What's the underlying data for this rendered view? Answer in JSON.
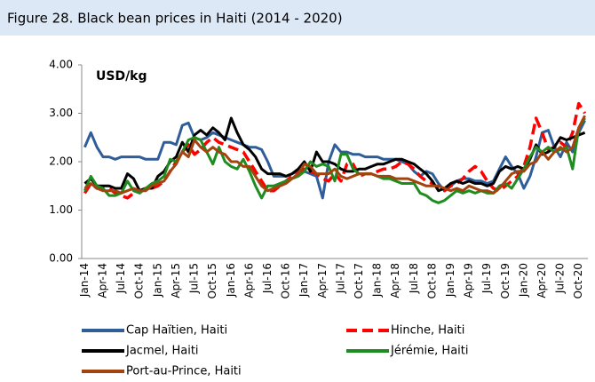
{
  "chart_data": {
    "type": "line",
    "title": "Figure 28. Black bean prices in Haiti (2014 - 2020)",
    "y_label": "USD/kg",
    "categories": [
      "Jan-14",
      null,
      null,
      "Apr-14",
      null,
      null,
      "Jul-14",
      null,
      null,
      "Oct-14",
      null,
      null,
      "Jan-15",
      null,
      null,
      "Apr-15",
      null,
      null,
      "Jul-15",
      null,
      null,
      "Oct-15",
      null,
      null,
      "Jan-16",
      null,
      null,
      "Apr-16",
      null,
      null,
      "Jul-16",
      null,
      null,
      "Oct-16",
      null,
      null,
      "Jan-17",
      null,
      null,
      "Apr-17",
      null,
      null,
      "Jul-17",
      null,
      null,
      "Oct-17",
      null,
      null,
      "Jan-18",
      null,
      null,
      "Apr-18",
      null,
      null,
      "Jul-18",
      null,
      null,
      "Oct-18",
      null,
      null,
      "Jan-19",
      null,
      null,
      "Apr-19",
      null,
      null,
      "Jul-19",
      null,
      null,
      "Oct-19",
      null,
      null,
      "Jan-20",
      null,
      null,
      "Apr-20",
      null,
      null,
      "Jul-20",
      null,
      null,
      "Oct-20",
      null
    ],
    "series": [
      {
        "name": "Cap Haïtien, Haiti",
        "color": "#2f5d9a",
        "line_style": "solid",
        "values": [
          2.3,
          2.6,
          2.3,
          2.1,
          2.1,
          2.05,
          2.1,
          2.1,
          2.1,
          2.1,
          2.05,
          2.05,
          2.05,
          2.4,
          2.4,
          2.35,
          2.75,
          2.8,
          2.5,
          2.45,
          2.5,
          2.6,
          2.55,
          2.5,
          2.45,
          2.4,
          2.35,
          2.3,
          2.3,
          2.25,
          2.0,
          1.7,
          1.7,
          1.7,
          1.75,
          1.8,
          1.8,
          1.75,
          1.7,
          1.25,
          2.0,
          2.35,
          2.2,
          2.2,
          2.15,
          2.15,
          2.1,
          2.1,
          2.1,
          2.05,
          2.05,
          2.05,
          2.0,
          1.95,
          1.8,
          1.7,
          1.8,
          1.75,
          1.55,
          1.4,
          1.5,
          1.6,
          1.65,
          1.65,
          1.6,
          1.6,
          1.55,
          1.6,
          1.85,
          2.1,
          1.9,
          1.75,
          1.45,
          1.7,
          2.1,
          2.6,
          2.65,
          2.3,
          2.1,
          2.4,
          2.2,
          2.6,
          2.85
        ]
      },
      {
        "name": "Hinche, Haiti",
        "color": "#ff0000",
        "line_style": "dashed",
        "values": [
          1.35,
          1.55,
          1.45,
          1.45,
          1.45,
          1.35,
          1.3,
          1.25,
          1.35,
          1.4,
          1.45,
          1.45,
          1.5,
          1.6,
          1.8,
          2.0,
          2.2,
          2.35,
          2.15,
          2.25,
          2.4,
          2.5,
          2.4,
          2.35,
          2.3,
          2.25,
          2.2,
          2.0,
          1.8,
          1.6,
          1.4,
          1.4,
          1.5,
          1.6,
          1.7,
          1.8,
          1.85,
          1.8,
          1.75,
          1.65,
          1.6,
          1.75,
          1.6,
          1.95,
          1.95,
          1.7,
          1.75,
          1.75,
          1.8,
          1.85,
          1.85,
          1.9,
          2.0,
          1.95,
          1.85,
          1.7,
          1.6,
          1.55,
          1.45,
          1.4,
          1.5,
          1.55,
          1.65,
          1.8,
          1.9,
          1.8,
          1.6,
          1.45,
          1.4,
          1.5,
          1.6,
          1.7,
          1.9,
          2.3,
          2.9,
          2.6,
          2.25,
          2.3,
          2.4,
          2.3,
          2.6,
          3.2,
          3.0
        ]
      },
      {
        "name": "Jacmel, Haiti",
        "color": "#000000",
        "line_style": "solid",
        "values": [
          1.55,
          1.65,
          1.5,
          1.5,
          1.5,
          1.45,
          1.45,
          1.75,
          1.65,
          1.4,
          1.45,
          1.45,
          1.7,
          1.8,
          2.0,
          2.1,
          2.4,
          2.2,
          2.55,
          2.65,
          2.55,
          2.7,
          2.6,
          2.45,
          2.9,
          2.6,
          2.35,
          2.25,
          2.1,
          1.85,
          1.75,
          1.75,
          1.75,
          1.7,
          1.75,
          1.85,
          2.0,
          1.8,
          2.2,
          2.0,
          2.0,
          1.95,
          1.85,
          1.8,
          1.8,
          1.85,
          1.85,
          1.9,
          1.95,
          1.95,
          2.0,
          2.05,
          2.05,
          2.0,
          1.95,
          1.85,
          1.75,
          1.6,
          1.4,
          1.45,
          1.55,
          1.6,
          1.55,
          1.6,
          1.55,
          1.55,
          1.5,
          1.55,
          1.8,
          1.9,
          1.85,
          1.9,
          1.85,
          2.05,
          2.35,
          2.15,
          2.2,
          2.3,
          2.5,
          2.45,
          2.5,
          2.55,
          2.6
        ]
      },
      {
        "name": "Jérémie, Haiti",
        "color": "#1e8c1e",
        "line_style": "solid",
        "values": [
          1.4,
          1.7,
          1.5,
          1.45,
          1.3,
          1.3,
          1.35,
          1.6,
          1.4,
          1.35,
          1.45,
          1.55,
          1.6,
          1.7,
          2.05,
          2.0,
          2.2,
          2.45,
          2.5,
          2.45,
          2.2,
          1.95,
          2.3,
          2.0,
          1.9,
          1.85,
          2.05,
          1.8,
          1.5,
          1.25,
          1.5,
          1.5,
          1.55,
          1.6,
          1.65,
          1.7,
          1.8,
          2.0,
          1.9,
          1.95,
          1.9,
          1.6,
          2.15,
          2.15,
          1.85,
          1.75,
          1.75,
          1.75,
          1.7,
          1.65,
          1.65,
          1.6,
          1.55,
          1.55,
          1.55,
          1.35,
          1.3,
          1.2,
          1.15,
          1.2,
          1.3,
          1.4,
          1.35,
          1.4,
          1.35,
          1.4,
          1.35,
          1.35,
          1.5,
          1.55,
          1.45,
          1.65,
          1.85,
          2.1,
          2.3,
          2.2,
          2.3,
          2.2,
          2.25,
          2.3,
          1.85,
          2.7,
          2.9
        ]
      },
      {
        "name": "Port-au-Prince, Haiti",
        "color": "#a3440f",
        "line_style": "solid",
        "values": [
          1.45,
          1.55,
          1.45,
          1.4,
          1.4,
          1.4,
          1.35,
          1.4,
          1.45,
          1.4,
          1.4,
          1.5,
          1.55,
          1.6,
          1.8,
          1.95,
          2.2,
          2.1,
          2.45,
          2.3,
          2.2,
          2.3,
          2.2,
          2.15,
          2.0,
          2.0,
          1.9,
          1.9,
          1.7,
          1.5,
          1.4,
          1.45,
          1.5,
          1.55,
          1.65,
          1.75,
          1.95,
          1.9,
          1.75,
          1.75,
          1.75,
          1.85,
          1.7,
          1.65,
          1.7,
          1.75,
          1.75,
          1.75,
          1.7,
          1.7,
          1.7,
          1.65,
          1.65,
          1.65,
          1.6,
          1.55,
          1.5,
          1.5,
          1.5,
          1.45,
          1.4,
          1.45,
          1.4,
          1.5,
          1.45,
          1.4,
          1.4,
          1.35,
          1.45,
          1.6,
          1.75,
          1.8,
          1.8,
          1.95,
          2.0,
          2.2,
          2.05,
          2.2,
          2.3,
          2.2,
          2.3,
          2.7,
          2.95
        ]
      }
    ],
    "ylim": [
      0,
      4
    ],
    "yticks": [
      {
        "value": 0,
        "label": "0.00"
      },
      {
        "value": 1,
        "label": "1.00"
      },
      {
        "value": 2,
        "label": "2.00"
      },
      {
        "value": 3,
        "label": "3.00"
      },
      {
        "value": 4,
        "label": "4.00"
      }
    ],
    "grid": false
  }
}
